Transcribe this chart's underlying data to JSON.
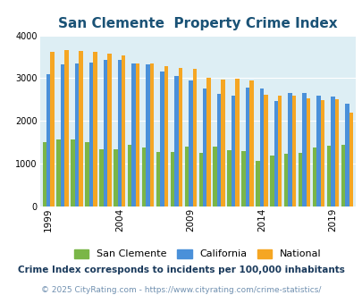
{
  "title": "San Clemente  Property Crime Index",
  "subtitle": "Crime Index corresponds to incidents per 100,000 inhabitants",
  "copyright": "© 2025 CityRating.com - https://www.cityrating.com/crime-statistics/",
  "years": [
    1999,
    2000,
    2001,
    2002,
    2003,
    2004,
    2005,
    2006,
    2007,
    2008,
    2009,
    2010,
    2011,
    2012,
    2013,
    2014,
    2015,
    2016,
    2017,
    2018,
    2019,
    2020
  ],
  "san_clemente": [
    1500,
    1560,
    1560,
    1510,
    1330,
    1330,
    1450,
    1380,
    1270,
    1280,
    1390,
    1250,
    1400,
    1310,
    1305,
    1060,
    1200,
    1230,
    1260,
    1380,
    1430,
    1440
  ],
  "california": [
    3100,
    3330,
    3340,
    3360,
    3430,
    3430,
    3350,
    3330,
    3150,
    3060,
    2940,
    2750,
    2630,
    2600,
    2780,
    2750,
    2460,
    2650,
    2650,
    2600,
    2570,
    2410
  ],
  "national": [
    3620,
    3650,
    3640,
    3620,
    3570,
    3540,
    3340,
    3350,
    3280,
    3230,
    3210,
    3010,
    2970,
    2980,
    2950,
    2620,
    2600,
    2590,
    2530,
    2490,
    2500,
    2200
  ],
  "color_sc": "#7ab648",
  "color_ca": "#4a90d9",
  "color_na": "#f5a623",
  "bg_color": "#ddeef4",
  "ylim": [
    0,
    4000
  ],
  "yticks": [
    0,
    1000,
    2000,
    3000,
    4000
  ],
  "title_color": "#1a5276",
  "subtitle_color": "#1a3a5c",
  "copyright_color": "#7090b0",
  "legend_labels": [
    "San Clemente",
    "California",
    "National"
  ],
  "tick_years": [
    1999,
    2004,
    2009,
    2014,
    2019
  ],
  "title_fontsize": 11,
  "subtitle_fontsize": 7.5,
  "copyright_fontsize": 6.5,
  "legend_fontsize": 8
}
